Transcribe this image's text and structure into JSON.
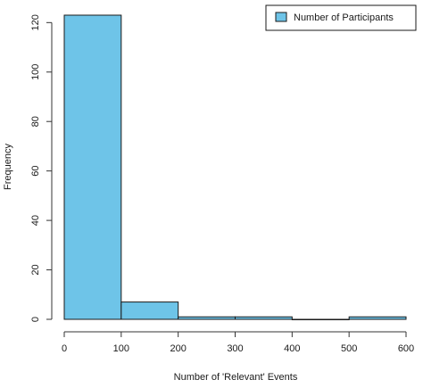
{
  "chart_data": {
    "type": "bar",
    "title": "",
    "xlabel": "Number of 'Relevant' Events",
    "ylabel": "Frequency",
    "bins": [
      {
        "range": [
          0,
          100
        ],
        "value": 123
      },
      {
        "range": [
          100,
          200
        ],
        "value": 7
      },
      {
        "range": [
          200,
          300
        ],
        "value": 1
      },
      {
        "range": [
          300,
          400
        ],
        "value": 1
      },
      {
        "range": [
          400,
          500
        ],
        "value": 0
      },
      {
        "range": [
          500,
          600
        ],
        "value": 1
      }
    ],
    "xlim": [
      0,
      600
    ],
    "ylim": [
      0,
      123
    ],
    "x_ticks": [
      "0",
      "100",
      "200",
      "300",
      "400",
      "500",
      "600"
    ],
    "y_ticks": [
      "0",
      "20",
      "40",
      "60",
      "80",
      "100",
      "120"
    ],
    "legend": {
      "placement": "top-right",
      "entries": [
        "Number of Participants"
      ]
    },
    "grid": false,
    "colors": {
      "bar_fill": "#6ec4e8",
      "bar_stroke": "#1a1a1a",
      "axis": "#333333"
    }
  }
}
